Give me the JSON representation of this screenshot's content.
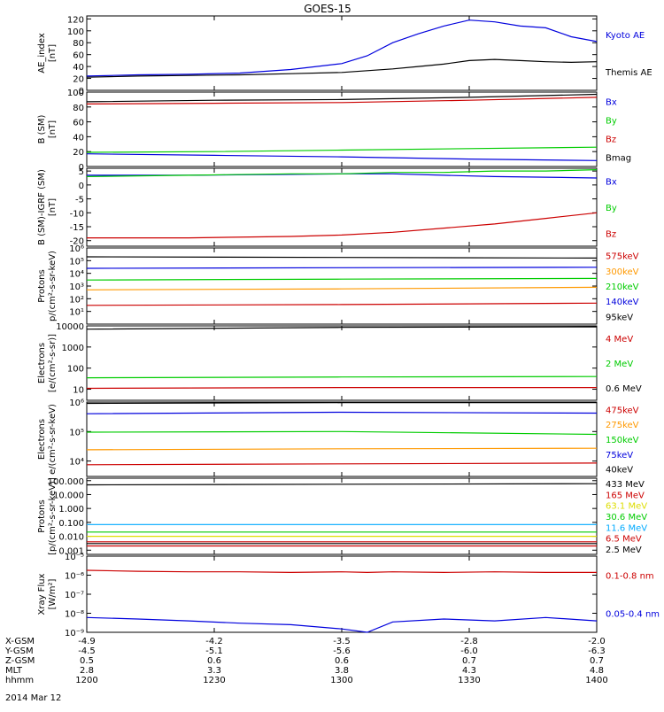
{
  "title": "GOES-15",
  "date": "2014 Mar 12",
  "footer": {
    "row_labels": [
      "X-GSM",
      "Y-GSM",
      "Z-GSM",
      "MLT",
      "hhmm"
    ],
    "columns": [
      {
        "x_gsm": "-4.9",
        "y_gsm": "-4.5",
        "z_gsm": "0.5",
        "mlt": "2.8",
        "hhmm": "1200"
      },
      {
        "x_gsm": "-4.2",
        "y_gsm": "-5.1",
        "z_gsm": "0.6",
        "mlt": "3.3",
        "hhmm": "1230"
      },
      {
        "x_gsm": "-3.5",
        "y_gsm": "-5.6",
        "z_gsm": "0.6",
        "mlt": "3.8",
        "hhmm": "1300"
      },
      {
        "x_gsm": "-2.8",
        "y_gsm": "-6.0",
        "z_gsm": "0.7",
        "mlt": "4.3",
        "hhmm": "1330"
      },
      {
        "x_gsm": "-2.0",
        "y_gsm": "-6.3",
        "z_gsm": "0.7",
        "mlt": "4.8",
        "hhmm": "1400"
      }
    ]
  },
  "chart_data": [
    {
      "id": "ae",
      "type": "line",
      "ylabel": [
        "AE_index",
        "[nT]"
      ],
      "ylim": [
        0,
        125
      ],
      "ticks": [
        "0",
        "20",
        "40",
        "60",
        "80",
        "100",
        "120"
      ],
      "tick_values": [
        0,
        20,
        40,
        60,
        80,
        100,
        120
      ],
      "x": [
        0,
        0.1,
        0.2,
        0.3,
        0.4,
        0.5,
        0.55,
        0.6,
        0.65,
        0.7,
        0.75,
        0.8,
        0.85,
        0.9,
        0.95,
        1.0
      ],
      "series": [
        {
          "name": "Kyoto AE",
          "color": "#0000dd",
          "values": [
            24,
            26,
            27,
            29,
            35,
            45,
            58,
            80,
            95,
            108,
            118,
            115,
            108,
            105,
            90,
            82
          ]
        },
        {
          "name": "Themis AE",
          "color": "#000000",
          "values": [
            22,
            24,
            25,
            26,
            28,
            30,
            33,
            36,
            40,
            44,
            50,
            52,
            50,
            48,
            47,
            48
          ]
        }
      ]
    },
    {
      "id": "b",
      "type": "line",
      "ylabel": [
        "B (SM)",
        "[nT]"
      ],
      "ylim": [
        0,
        100
      ],
      "ticks": [
        "0",
        "20",
        "40",
        "60",
        "80",
        "100"
      ],
      "tick_values": [
        0,
        20,
        40,
        60,
        80,
        100
      ],
      "x": [
        0,
        0.25,
        0.5,
        0.75,
        1.0
      ],
      "legend_extra": "Bmag",
      "series": [
        {
          "name": "Bx",
          "color": "#0000dd",
          "values": [
            17,
            15,
            13,
            10,
            8
          ]
        },
        {
          "name": "By",
          "color": "#00cc00",
          "values": [
            19,
            20,
            22,
            24,
            26
          ]
        },
        {
          "name": "Bz",
          "color": "#cc0000",
          "values": [
            84,
            85,
            86,
            89,
            93
          ]
        },
        {
          "name": "Bmag",
          "color": "#000000",
          "values": [
            87,
            89,
            90,
            93,
            97
          ]
        }
      ]
    },
    {
      "id": "bigrf",
      "type": "line",
      "ylabel": [
        "B (SM)-IGRF (SM)",
        "[nT]"
      ],
      "ylim": [
        -22,
        6
      ],
      "ticks": [
        "-20",
        "-15",
        "-10",
        "-5",
        "0",
        "5"
      ],
      "tick_values": [
        -20,
        -15,
        -10,
        -5,
        0,
        5
      ],
      "x": [
        0,
        0.2,
        0.4,
        0.5,
        0.6,
        0.7,
        0.8,
        0.9,
        1.0
      ],
      "series": [
        {
          "name": "Bx",
          "color": "#0000dd",
          "values": [
            3.5,
            3.5,
            3.8,
            4,
            4,
            3.5,
            3,
            2.8,
            2.5
          ]
        },
        {
          "name": "By",
          "color": "#00cc00",
          "values": [
            3,
            3.5,
            4,
            4,
            4.5,
            4.5,
            5,
            5,
            5.5
          ]
        },
        {
          "name": "Bz",
          "color": "#cc0000",
          "values": [
            -19,
            -19,
            -18.5,
            -18,
            -17,
            -15.5,
            -14,
            -12,
            -10
          ]
        }
      ]
    },
    {
      "id": "protons_kev",
      "type": "line",
      "log": true,
      "ylabel": [
        "Protons",
        "p/(cm²-s-sr-keV)"
      ],
      "ylim": [
        1,
        1000000
      ],
      "ticks": [
        "10¹",
        "10²",
        "10³",
        "10⁴",
        "10⁵",
        "10⁶"
      ],
      "tick_values": [
        10,
        100,
        1000,
        10000,
        100000,
        1000000
      ],
      "x": [
        0,
        0.5,
        1.0
      ],
      "series": [
        {
          "name": "575keV",
          "color": "#cc0000",
          "values": [
            30,
            35,
            45
          ]
        },
        {
          "name": "300keV",
          "color": "#ff9900",
          "values": [
            500,
            600,
            800
          ]
        },
        {
          "name": "210keV",
          "color": "#00cc00",
          "values": [
            3000,
            3500,
            4000
          ]
        },
        {
          "name": "140keV",
          "color": "#0000dd",
          "values": [
            25000,
            28000,
            30000
          ]
        },
        {
          "name": "95keV",
          "color": "#000000",
          "values": [
            200000,
            180000,
            160000
          ]
        }
      ]
    },
    {
      "id": "electrons_mev",
      "type": "line",
      "log": true,
      "ylabel": [
        "Electrons",
        "[e/(cm²-s-sr)]"
      ],
      "ylim": [
        3,
        10000
      ],
      "ticks": [
        "10",
        "100",
        "1000",
        "10000"
      ],
      "tick_values": [
        10,
        100,
        1000,
        10000
      ],
      "x": [
        0,
        0.5,
        1.0
      ],
      "series": [
        {
          "name": "4 MeV",
          "color": "#cc0000",
          "values": [
            11,
            12,
            12
          ]
        },
        {
          "name": "2 MeV",
          "color": "#00cc00",
          "values": [
            35,
            38,
            40
          ]
        },
        {
          "name": "0.6 MeV",
          "color": "#000000",
          "values": [
            7000,
            8500,
            9000
          ]
        }
      ]
    },
    {
      "id": "electrons_kev",
      "type": "line",
      "log": true,
      "ylabel": [
        "Electrons",
        "e/(cm²-s-sr-keV)"
      ],
      "ylim": [
        3000,
        1000000
      ],
      "ticks": [
        "10⁴",
        "10⁵",
        "10⁶"
      ],
      "tick_values": [
        10000,
        100000,
        1000000
      ],
      "x": [
        0,
        0.5,
        1.0
      ],
      "series": [
        {
          "name": "475keV",
          "color": "#cc0000",
          "values": [
            7500,
            8000,
            8500
          ]
        },
        {
          "name": "275keV",
          "color": "#ff9900",
          "values": [
            24000,
            26000,
            27000
          ]
        },
        {
          "name": "150keV",
          "color": "#00cc00",
          "values": [
            95000,
            100000,
            80000
          ]
        },
        {
          "name": "75keV",
          "color": "#0000dd",
          "values": [
            400000,
            450000,
            420000
          ]
        },
        {
          "name": "40keV",
          "color": "#000000",
          "values": [
            900000,
            950000,
            950000
          ]
        }
      ]
    },
    {
      "id": "protons_mev",
      "type": "line",
      "log": true,
      "ylabel": [
        "Protons",
        "[p/(cm²-s-sr-keV)]"
      ],
      "ylim": [
        0.0005,
        150
      ],
      "ticks": [
        "0.001",
        "0.010",
        "0.100",
        "1.000",
        "10.000",
        "100.000"
      ],
      "tick_values": [
        0.001,
        0.01,
        0.1,
        1,
        10,
        100
      ],
      "x": [
        0,
        0.5,
        1.0
      ],
      "series": [
        {
          "name": "433 MeV",
          "color": "#000000",
          "values": [
            50,
            55,
            60
          ]
        },
        {
          "name": "165 MeV",
          "color": "#cc0000",
          "values": [
            0.002,
            0.002,
            0.002
          ]
        },
        {
          "name": "63.1 MeV",
          "color": "#dddd00",
          "values": [
            0.01,
            0.01,
            0.01
          ]
        },
        {
          "name": "30.6 MeV",
          "color": "#00cc00",
          "values": [
            0.02,
            0.02,
            0.02
          ]
        },
        {
          "name": "11.6 MeV",
          "color": "#00aaff",
          "values": [
            0.07,
            0.07,
            0.07
          ]
        },
        {
          "name": "6.5 MeV",
          "color": "#cc0000",
          "values": [
            0.004,
            0.004,
            0.004
          ]
        },
        {
          "name": "2.5 MeV",
          "color": "#000000",
          "values": [
            0.003,
            0.003,
            0.003
          ]
        }
      ]
    },
    {
      "id": "xray",
      "type": "line",
      "log": true,
      "ylabel": [
        "Xray Flux",
        "[W/m²]"
      ],
      "ylim": [
        1e-09,
        1e-05
      ],
      "ticks": [
        "10⁻⁹",
        "10⁻⁸",
        "10⁻⁷",
        "10⁻⁶",
        "10⁻⁵"
      ],
      "tick_values": [
        1e-09,
        1e-08,
        1e-07,
        1e-06,
        1e-05
      ],
      "x": [
        0,
        0.1,
        0.2,
        0.3,
        0.4,
        0.5,
        0.55,
        0.6,
        0.7,
        0.8,
        0.9,
        1.0
      ],
      "series": [
        {
          "name": "0.1-0.8 nm",
          "color": "#cc0000",
          "values": [
            1.8e-06,
            1.6e-06,
            1.5e-06,
            1.5e-06,
            1.4e-06,
            1.5e-06,
            1.4e-06,
            1.5e-06,
            1.4e-06,
            1.5e-06,
            1.4e-06,
            1.4e-06
          ]
        },
        {
          "name": "0.05-0.4 nm",
          "color": "#0000dd",
          "values": [
            6e-09,
            5e-09,
            4e-09,
            3e-09,
            2.5e-09,
            1.5e-09,
            1e-09,
            3.5e-09,
            5e-09,
            4e-09,
            6e-09,
            4e-09
          ]
        }
      ]
    }
  ]
}
